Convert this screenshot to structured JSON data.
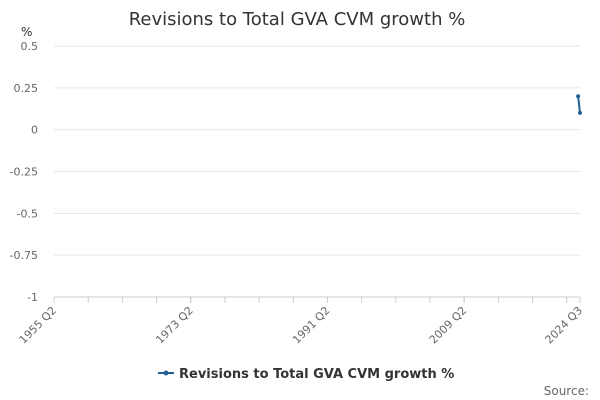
{
  "chart_data": {
    "type": "line",
    "title": "Revisions to Total GVA CVM growth %",
    "y_unit_label": "%",
    "ylim": [
      -1,
      0.5
    ],
    "y_ticks": [
      0.5,
      0.25,
      0,
      -0.25,
      -0.5,
      -0.75,
      -1
    ],
    "y_tick_labels": [
      "0.5",
      "0.25",
      "0",
      "-0.25",
      "-0.5",
      "-0.75",
      "-1"
    ],
    "x_tick_labels": [
      "1955 Q2",
      "1973 Q2",
      "1991 Q2",
      "2009 Q2",
      "2024 Q3"
    ],
    "x_tick_quarter_index": [
      0,
      72,
      144,
      216,
      277
    ],
    "x_range_quarter_index": [
      0,
      277
    ],
    "series": [
      {
        "name": "Revisions to Total GVA CVM growth %",
        "color": "#206095",
        "x": [
          "2024 Q2",
          "2024 Q3"
        ],
        "x_quarter_index": [
          276,
          277
        ],
        "values": [
          0.2,
          0.1
        ]
      }
    ],
    "legend_position": "bottom-center",
    "grid": true
  },
  "source_label": "Source:"
}
